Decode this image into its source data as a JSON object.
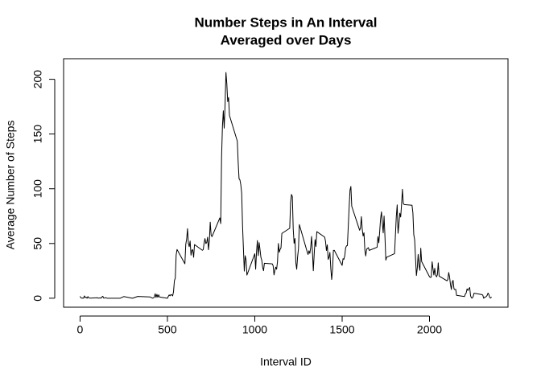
{
  "chart_data": {
    "type": "line",
    "title": [
      "Number Steps in An Interval",
      "Averaged over Days"
    ],
    "x_label": "Interval ID",
    "y_label": "Average Number of Steps",
    "color": "#000000",
    "xlim": [
      -94.2,
      2449.2
    ],
    "xticks": [
      0,
      500,
      1000,
      1500,
      2000
    ],
    "ylim": [
      -8.2,
      214.4
    ],
    "yticks": [
      0,
      50,
      100,
      150,
      200
    ],
    "x": [
      0,
      5,
      10,
      15,
      20,
      25,
      30,
      35,
      40,
      45,
      50,
      55,
      100,
      105,
      110,
      115,
      120,
      125,
      130,
      135,
      140,
      145,
      150,
      155,
      200,
      230,
      250,
      300,
      330,
      400,
      415,
      420,
      425,
      430,
      435,
      440,
      445,
      450,
      455,
      500,
      505,
      510,
      515,
      520,
      525,
      530,
      535,
      540,
      545,
      550,
      555,
      600,
      605,
      610,
      615,
      620,
      625,
      630,
      635,
      640,
      645,
      650,
      655,
      700,
      705,
      710,
      715,
      720,
      725,
      730,
      735,
      740,
      745,
      750,
      755,
      800,
      805,
      810,
      815,
      820,
      825,
      830,
      835,
      840,
      845,
      850,
      855,
      900,
      905,
      910,
      915,
      920,
      925,
      930,
      935,
      940,
      945,
      950,
      955,
      1000,
      1005,
      1010,
      1015,
      1020,
      1025,
      1030,
      1035,
      1040,
      1045,
      1050,
      1055,
      1100,
      1105,
      1110,
      1115,
      1120,
      1125,
      1130,
      1135,
      1140,
      1145,
      1150,
      1155,
      1200,
      1205,
      1210,
      1215,
      1220,
      1225,
      1230,
      1235,
      1240,
      1245,
      1250,
      1255,
      1300,
      1305,
      1310,
      1315,
      1320,
      1325,
      1330,
      1335,
      1340,
      1345,
      1350,
      1355,
      1400,
      1405,
      1410,
      1415,
      1420,
      1425,
      1430,
      1435,
      1440,
      1445,
      1450,
      1455,
      1500,
      1505,
      1510,
      1515,
      1520,
      1525,
      1530,
      1535,
      1540,
      1545,
      1550,
      1555,
      1600,
      1605,
      1610,
      1615,
      1620,
      1625,
      1630,
      1635,
      1640,
      1645,
      1650,
      1655,
      1700,
      1705,
      1710,
      1715,
      1720,
      1725,
      1730,
      1735,
      1740,
      1745,
      1750,
      1755,
      1800,
      1805,
      1810,
      1815,
      1820,
      1825,
      1830,
      1835,
      1840,
      1845,
      1850,
      1855,
      1900,
      1905,
      1910,
      1915,
      1920,
      1925,
      1930,
      1935,
      1940,
      1945,
      1950,
      1955,
      2000,
      2005,
      2010,
      2015,
      2020,
      2025,
      2030,
      2035,
      2040,
      2045,
      2050,
      2055,
      2100,
      2105,
      2110,
      2115,
      2120,
      2125,
      2130,
      2135,
      2140,
      2145,
      2150,
      2155,
      2200,
      2205,
      2210,
      2215,
      2220,
      2225,
      2230,
      2235,
      2240,
      2245,
      2250,
      2255,
      2300,
      2305,
      2310,
      2315,
      2320,
      2325,
      2330,
      2335,
      2340,
      2345,
      2350,
      2355
    ],
    "values": [
      1.7,
      0.3,
      0.1,
      0.2,
      0.1,
      2.1,
      0.5,
      0.9,
      0,
      1.5,
      0.3,
      0.1,
      0.4,
      0,
      0.2,
      0.3,
      0,
      1.1,
      1.8,
      0.2,
      0.2,
      0.4,
      0.3,
      0,
      0,
      0,
      1.5,
      0,
      1.6,
      1.2,
      0,
      0.3,
      0.9,
      4.1,
      0.7,
      3.5,
      0.8,
      3.1,
      1.1,
      0,
      1.6,
      3,
      2.2,
      3.3,
      3,
      2.1,
      6.1,
      16,
      18.3,
      39.5,
      44.5,
      31.5,
      49.3,
      53.8,
      63.5,
      50,
      47.1,
      52.2,
      39.3,
      44,
      44.2,
      37.4,
      49,
      43.8,
      44.4,
      50.5,
      54.5,
      49.9,
      51,
      55.7,
      44.3,
      52.3,
      69.5,
      57.8,
      56.2,
      73.4,
      68.2,
      129.4,
      157.5,
      171.2,
      155.4,
      177.3,
      206.2,
      195.9,
      179.6,
      183.4,
      167,
      143.5,
      124,
      109.1,
      108.1,
      103.7,
      96,
      66.2,
      45.2,
      24.8,
      38.8,
      35,
      21.1,
      40.6,
      26.5,
      42.4,
      52.7,
      38.9,
      50.8,
      44.3,
      37.4,
      34.7,
      28.3,
      25.1,
      31.9,
      31.4,
      29.7,
      21.3,
      25.5,
      28.4,
      26.5,
      33.4,
      50,
      42,
      44.6,
      46,
      59.2,
      63.9,
      87.7,
      94.8,
      92.8,
      63.4,
      50.2,
      54.5,
      32.4,
      26.5,
      37.7,
      45.1,
      67.3,
      42.3,
      39.9,
      43.3,
      41,
      46.2,
      56.4,
      42.8,
      25.1,
      39.9,
      53.5,
      47.3,
      60.8,
      55.8,
      51.9,
      43.6,
      48.7,
      35.5,
      37.5,
      41.8,
      27.5,
      17.1,
      26.2,
      43.6,
      43.8,
      30,
      36.1,
      35.5,
      38.8,
      46,
      47.8,
      48.1,
      65.3,
      82.9,
      98.7,
      102.1,
      84,
      62.1,
      64.1,
      74.5,
      63.2,
      56.9,
      59.8,
      43.9,
      38.6,
      44.7,
      45.5,
      46.2,
      43.7,
      46.6,
      56.3,
      50.7,
      61.2,
      72.7,
      78.9,
      68.9,
      59.7,
      75.1,
      56.5,
      34.8,
      37.5,
      40.7,
      58,
      74.7,
      85.3,
      59.3,
      67.8,
      77.7,
      74.2,
      85.3,
      99.5,
      86.6,
      85.6,
      84.9,
      77.8,
      58,
      53.4,
      36.3,
      20.7,
      27.4,
      40,
      30.2,
      25.5,
      45.7,
      33.5,
      19.6,
      19,
      19.3,
      33.3,
      26.8,
      21.2,
      27.3,
      21.3,
      19.5,
      21.3,
      32.3,
      20.2,
      15.9,
      17.2,
      23.5,
      19.2,
      12.5,
      8,
      14.7,
      16.3,
      8.7,
      7.8,
      8.1,
      2.6,
      1.5,
      3.7,
      4.8,
      8.5,
      7.1,
      8.7,
      9.8,
      2.2,
      0.3,
      0.1,
      1.6,
      4.6,
      3.3,
      2.8,
      0,
      0.8,
      1,
      1.6,
      2.6,
      4.7,
      3.3,
      0.6,
      0.2,
      1.1
    ]
  }
}
